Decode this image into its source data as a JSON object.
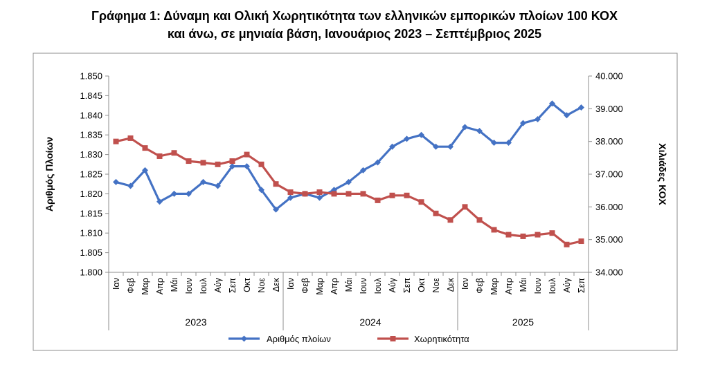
{
  "title": {
    "line1": "Γράφημα 1: Δύναμη και Ολική Χωρητικότητα των ελληνικών εμπορικών πλοίων 100 ΚΟΧ",
    "line2": "και άνω, σε μηνιαία βάση, Ιανουάριος 2023 – Σεπτέμβριος 2025"
  },
  "chart_data": {
    "type": "line",
    "title": "Γράφημα 1: Δύναμη και Ολική Χωρητικότητα των ελληνικών εμπορικών πλοίων 100 ΚΟΧ και άνω, σε μηνιαία βάση, Ιανουάριος 2023 – Σεπτέμβριος 2025",
    "ylabel_left": "Αριθμός Πλοίων",
    "ylabel_right": "Χιλιάδες ΚΟΧ",
    "ylim_left": [
      1800,
      1850
    ],
    "ylim_right": [
      34000,
      40000
    ],
    "yticks_left": [
      "1.800",
      "1.805",
      "1.810",
      "1.815",
      "1.820",
      "1.825",
      "1.830",
      "1.835",
      "1.840",
      "1.845",
      "1.850"
    ],
    "yticks_right": [
      "34.000",
      "35.000",
      "36.000",
      "37.000",
      "38.000",
      "39.000",
      "40.000"
    ],
    "categories": [
      "Ιαν",
      "Φεβ",
      "Μαρ",
      "Απρ",
      "Μάι",
      "Ιουν",
      "Ιουλ",
      "Αύγ",
      "Σεπ",
      "Οκτ",
      "Νοε",
      "Δεκ",
      "Ιαν",
      "Φεβ",
      "Μαρ",
      "Απρ",
      "Μάι",
      "Ιουν",
      "Ιουλ",
      "Αύγ",
      "Σεπ",
      "Οκτ",
      "Νοε",
      "Δεκ",
      "Ιαν",
      "Φεβ",
      "Μαρ",
      "Απρ",
      "Μάι",
      "Ιουν",
      "Ιουλ",
      "Αύγ",
      "Σεπ"
    ],
    "years": [
      {
        "label": "2023",
        "count": 12
      },
      {
        "label": "2024",
        "count": 12
      },
      {
        "label": "2025",
        "count": 9
      }
    ],
    "series": [
      {
        "name": "Αριθμός πλοίων",
        "axis": "left",
        "color": "#4472C4",
        "marker": "diamond",
        "values": [
          1823,
          1822,
          1826,
          1818,
          1820,
          1820,
          1823,
          1822,
          1827,
          1827,
          1821,
          1816,
          1819,
          1820,
          1819,
          1821,
          1823,
          1826,
          1828,
          1832,
          1834,
          1835,
          1832,
          1832,
          1837,
          1836,
          1833,
          1833,
          1838,
          1839,
          1843,
          1840,
          1842
        ]
      },
      {
        "name": "Χωρητικότητα",
        "axis": "right",
        "color": "#C0504D",
        "marker": "square",
        "values": [
          38000,
          38100,
          37800,
          37550,
          37650,
          37400,
          37350,
          37300,
          37400,
          37600,
          37300,
          36700,
          36450,
          36400,
          36450,
          36400,
          36400,
          36400,
          36200,
          36350,
          36350,
          36150,
          35800,
          35600,
          36000,
          35600,
          35300,
          35150,
          35100,
          35150,
          35200,
          34850,
          34950
        ]
      }
    ],
    "legend_position": "bottom",
    "grid": false
  }
}
